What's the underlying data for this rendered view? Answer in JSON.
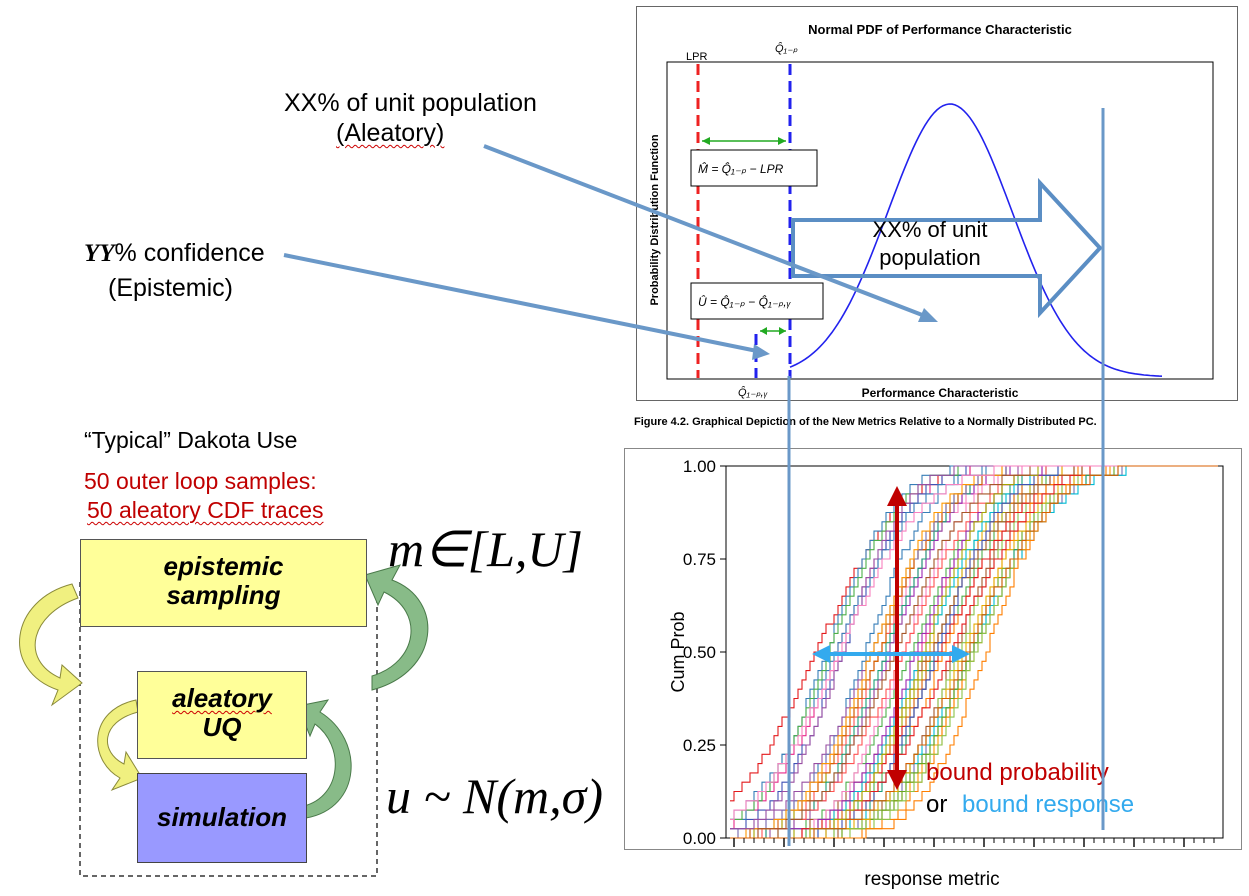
{
  "callouts": {
    "aleatory_line1": "XX% of unit population",
    "aleatory_line2": "(Aleatory)",
    "epistemic_prefix": "YY",
    "epistemic_suffix": "% confidence",
    "epistemic_line2": "(Epistemic)"
  },
  "workflow": {
    "title": "“Typical” Dakota Use",
    "samples_line1": "50 outer loop samples:",
    "samples_line2": "50 aleatory CDF traces",
    "epistemic_box_line1": "epistemic",
    "epistemic_box_line2": "sampling",
    "aleatory_box_line1": "aleatory",
    "aleatory_box_line2": "UQ",
    "simulation_box": "simulation",
    "eq_interval": "m∈[L,U]",
    "eq_normal": "u ~ N(m,σ)",
    "colors": {
      "yellow_box": "#ffff99",
      "purple_box": "#9999ff",
      "accent_red": "#c00000"
    }
  },
  "pdf_figure": {
    "title": "Normal PDF of Performance Characteristic",
    "label_lpr": "LPR",
    "label_q_top": "Q̂₁₋ₚ",
    "label_q_bottom": "Q̂₁₋ₚ,ᵧ",
    "eq_m": "M̂ = Q̂₁₋ₚ − LPR",
    "eq_u": "Û = Q̂₁₋ₚ − Q̂₁₋ₚ,ᵧ",
    "ylabel": "Probability Distribution Function",
    "xlabel": "Performance Characteristic",
    "arrow_text_line1": "XX% of unit",
    "arrow_text_line2": "population",
    "caption": "Figure 4.2.  Graphical Depiction of the New Metrics Relative to a Normally Distributed PC."
  },
  "chart_data": {
    "type": "line",
    "title": "",
    "xlabel": "response metric",
    "ylabel": "Cum Prob",
    "ylim": [
      0,
      1
    ],
    "y_ticks": [
      "0.00",
      "0.25",
      "0.50",
      "0.75",
      "1.00"
    ],
    "series_count": 50,
    "annotation_probability": "bound probability",
    "annotation_or": "or",
    "annotation_response": "bound response",
    "colors": {
      "probability": "#c00000",
      "response": "#33aaee"
    }
  }
}
